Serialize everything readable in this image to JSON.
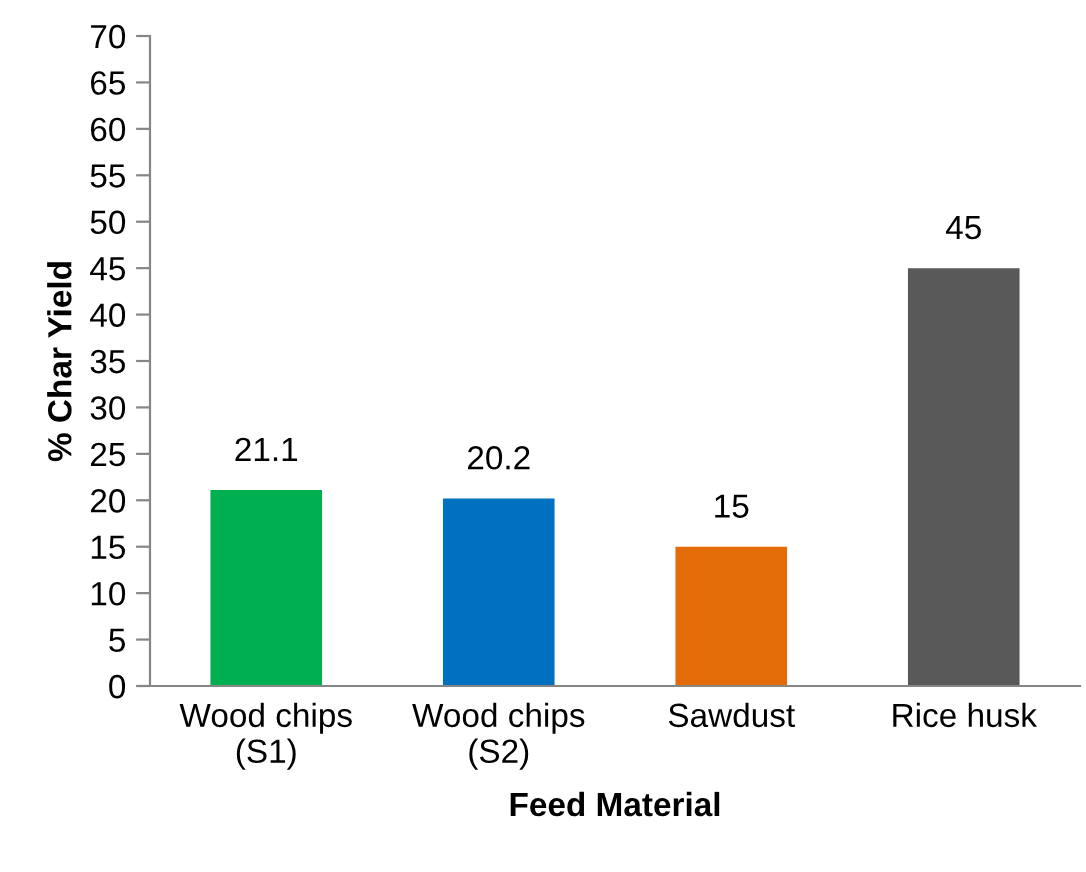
{
  "chart_data": {
    "type": "bar",
    "xlabel": "Feed Material",
    "ylabel": "% Char Yield",
    "categories": [
      "Wood chips\n(S1)",
      "Wood chips\n(S2)",
      "Sawdust",
      "Rice husk"
    ],
    "values": [
      21.1,
      20.2,
      15,
      45
    ],
    "colors": [
      "#00b050",
      "#0070c0",
      "#e36c09",
      "#595959"
    ],
    "ylim": [
      0,
      70
    ],
    "yticks": [
      0,
      5,
      10,
      15,
      20,
      25,
      30,
      35,
      40,
      45,
      50,
      55,
      60,
      65,
      70
    ],
    "data_labels": true,
    "grid": false,
    "legend": false
  }
}
